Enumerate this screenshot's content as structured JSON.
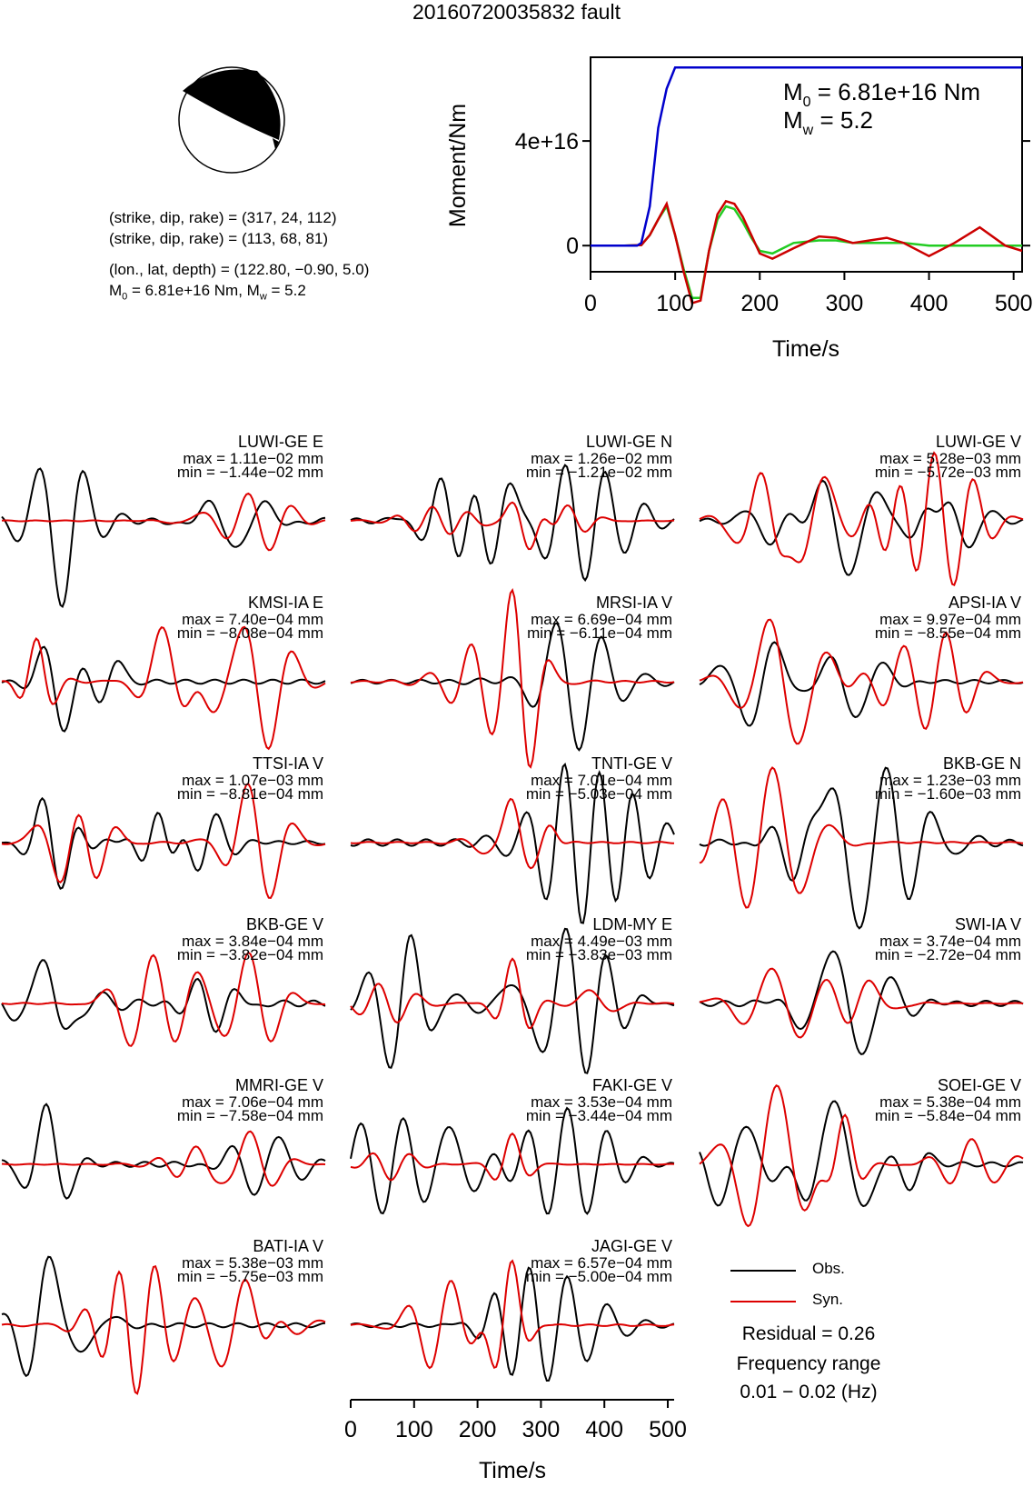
{
  "title": "20160720035832 fault",
  "source": {
    "nodal_plane_1": "(strike, dip, rake) = (317, 24, 112)",
    "nodal_plane_2": "(strike, dip, rake) = (113, 68, 81)",
    "location": "(lon., lat, depth) = (122.80, −0.90, 5.0)",
    "moment_line_prefix": "M",
    "moment_line_rest": " = 6.81e+16 Nm, M",
    "moment_line_end": " = 5.2",
    "sub0": "0",
    "subw": "w"
  },
  "moment_plot": {
    "ylabel": "Moment/Nm",
    "xlabel": "Time/s",
    "m0_text": " = 6.81e+16 Nm",
    "mw_text": " = 5.2",
    "m_letter": "M",
    "sub0": "0",
    "subw": "w",
    "yticks": [
      "0",
      "4e+16"
    ],
    "xticks": [
      "0",
      "100",
      "200",
      "300",
      "400",
      "500"
    ]
  },
  "chart_data": [
    {
      "type": "line",
      "title": "",
      "xlabel": "Time/s",
      "ylabel": "Moment/Nm",
      "xlim": [
        0,
        510
      ],
      "ylim": [
        -1e+16,
        7.2e+16
      ],
      "series": [
        {
          "name": "",
          "color": "#0000cc",
          "x": [
            0,
            55,
            60,
            70,
            80,
            90,
            100,
            510
          ],
          "y": [
            0,
            0,
            1000000000000000.0,
            1.5e+16,
            4.5e+16,
            6e+16,
            6.81e+16,
            6.81e+16
          ]
        },
        {
          "name": "",
          "color": "#cc0000",
          "x": [
            0,
            40,
            60,
            70,
            80,
            90,
            100,
            110,
            120,
            130,
            140,
            150,
            160,
            170,
            180,
            190,
            200,
            215,
            240,
            270,
            290,
            310,
            330,
            350,
            370,
            400,
            430,
            460,
            490,
            510
          ],
          "y": [
            0,
            0,
            200000000000000.0,
            4000000000000000.0,
            1e+16,
            1.6e+16,
            4000000000000000.0,
            -1e+16,
            -2.2e+16,
            -2.1e+16,
            -2000000000000000.0,
            1.2e+16,
            1.7e+16,
            1.6e+16,
            1.1e+16,
            4000000000000000.0,
            -3000000000000000.0,
            -5000000000000000.0,
            -1000000000000000.0,
            3500000000000000.0,
            3000000000000000.0,
            1000000000000000.0,
            2000000000000000.0,
            3000000000000000.0,
            1000000000000000.0,
            -4000000000000000.0,
            1000000000000000.0,
            7000000000000000.0,
            0.0,
            -2000000000000000.0
          ]
        },
        {
          "name": "",
          "color": "#22cc22",
          "x": [
            0,
            40,
            60,
            70,
            80,
            90,
            100,
            110,
            120,
            130,
            140,
            150,
            160,
            170,
            180,
            190,
            200,
            215,
            240,
            270,
            290,
            310,
            330,
            350,
            370,
            400,
            430,
            460,
            490,
            510
          ],
          "y": [
            0,
            0,
            200000000000000.0,
            4000000000000000.0,
            1e+16,
            1.5e+16,
            4000000000000000.0,
            -9000000000000000.0,
            -2e+16,
            -2e+16,
            -2000000000000000.0,
            1e+16,
            1.5e+16,
            1.4e+16,
            9000000000000000.0,
            3000000000000000.0,
            -2000000000000000.0,
            -3000000000000000.0,
            1000000000000000.0,
            2000000000000000.0,
            2000000000000000.0,
            1000000000000000.0,
            1000000000000000.0,
            1000000000000000.0,
            1000000000000000.0,
            0.0,
            0.0,
            0.0,
            0.0,
            0.0
          ]
        }
      ]
    }
  ],
  "stations": [
    {
      "name": "LUWI-GE E",
      "max": "max = 1.11e−02 mm",
      "min": "min = −1.44e−02 mm"
    },
    {
      "name": "LUWI-GE N",
      "max": "max = 1.26e−02 mm",
      "min": "min = −1.21e−02 mm"
    },
    {
      "name": "LUWI-GE V",
      "max": "max = 5.28e−03 mm",
      "min": "min = −5.72e−03 mm"
    },
    {
      "name": "KMSI-IA E",
      "max": "max = 7.40e−04 mm",
      "min": "min = −8.08e−04 mm"
    },
    {
      "name": "MRSI-IA V",
      "max": "max = 6.69e−04 mm",
      "min": "min = −6.11e−04 mm"
    },
    {
      "name": "APSI-IA V",
      "max": "max = 9.97e−04 mm",
      "min": "min = −8.55e−04 mm"
    },
    {
      "name": "TTSI-IA V",
      "max": "max = 1.07e−03 mm",
      "min": "min = −8.81e−04 mm"
    },
    {
      "name": "TNTI-GE V",
      "max": "max = 7.01e−04 mm",
      "min": "min = −5.03e−04 mm"
    },
    {
      "name": "BKB-GE N",
      "max": "max = 1.23e−03 mm",
      "min": "min = −1.60e−03 mm"
    },
    {
      "name": "BKB-GE V",
      "max": "max = 3.84e−04 mm",
      "min": "min = −3.82e−04 mm"
    },
    {
      "name": "LDM-MY E",
      "max": "max = 4.49e−03 mm",
      "min": "min = −3.83e−03 mm"
    },
    {
      "name": "SWI-IA V",
      "max": "max = 3.74e−04 mm",
      "min": "min = −2.72e−04 mm"
    },
    {
      "name": "MMRI-GE V",
      "max": "max = 7.06e−04 mm",
      "min": "min = −7.58e−04 mm"
    },
    {
      "name": "FAKI-GE V",
      "max": "max = 3.53e−04 mm",
      "min": "min = −3.44e−04 mm"
    },
    {
      "name": "SOEI-GE V",
      "max": "max = 5.38e−04 mm",
      "min": "min = −5.84e−04 mm"
    },
    {
      "name": "BATI-IA V",
      "max": "max = 5.38e−03 mm",
      "min": "min = −5.75e−03 mm"
    },
    {
      "name": "JAGI-GE V",
      "max": "max = 6.57e−04 mm",
      "min": "min = −5.00e−04 mm"
    }
  ],
  "trace_axis": {
    "xlabel": "Time/s",
    "xticks": [
      "0",
      "100",
      "200",
      "300",
      "400",
      "500"
    ]
  },
  "legend": {
    "obs": "Obs.",
    "syn": "Syn.",
    "obs_color": "#000000",
    "syn_color": "#dd0000"
  },
  "residual": "Residual = 0.26",
  "freq_label": "Frequency range",
  "freq_value": "0.01 − 0.02 (Hz)"
}
